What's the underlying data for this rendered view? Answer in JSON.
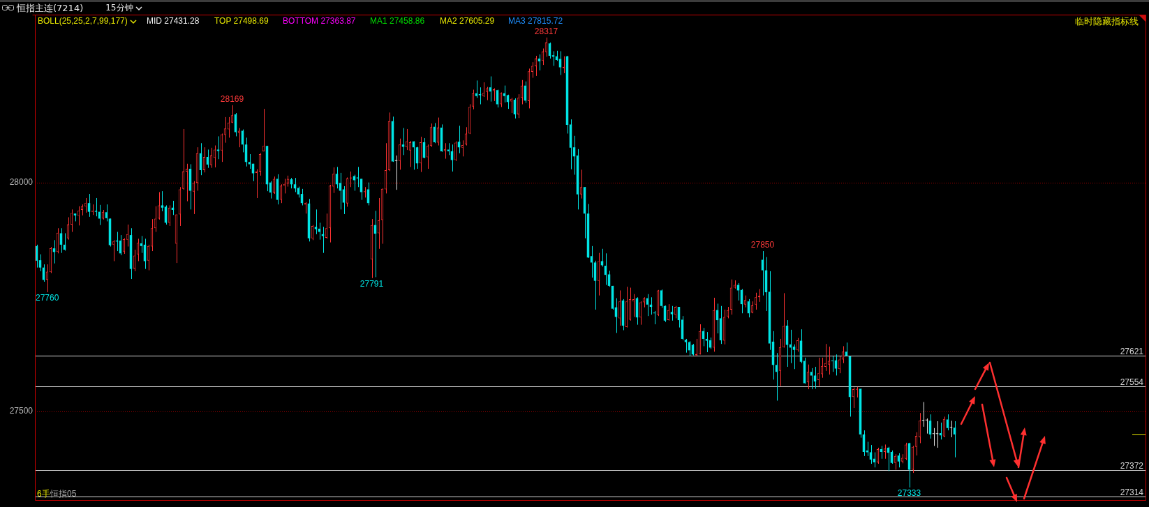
{
  "chart_data": {
    "type": "candlestick",
    "title": "恒指主连(7214)",
    "subtitle": "15分钟",
    "categories": [
      null,
      null,
      null,
      null,
      null,
      null,
      null,
      null,
      null,
      null,
      null,
      null,
      null,
      null,
      null,
      null,
      null,
      null,
      null,
      null,
      null,
      null,
      null,
      null,
      null,
      null,
      null,
      null,
      null,
      null,
      null,
      null,
      null,
      null,
      null,
      null,
      null,
      null,
      null,
      null,
      null,
      null,
      null,
      null,
      null,
      null,
      null,
      null,
      null,
      null,
      null,
      null,
      null,
      null,
      null,
      null,
      null,
      null,
      null,
      null,
      null,
      null,
      null,
      null,
      null,
      null,
      null,
      null,
      null,
      null,
      null,
      null,
      null,
      null,
      null,
      null,
      null,
      null,
      null,
      null,
      null,
      null,
      null,
      null,
      null,
      null,
      null,
      null,
      null,
      null,
      null,
      null,
      null,
      null,
      null,
      null,
      null,
      null,
      null,
      null,
      null,
      null,
      null,
      null,
      null,
      null,
      null,
      null,
      null,
      null,
      null,
      null,
      null,
      null,
      null,
      null,
      null,
      null,
      null,
      null,
      null,
      null,
      null,
      null,
      null,
      null,
      null,
      null,
      null,
      null,
      null,
      null,
      null,
      null,
      null,
      null,
      null,
      null,
      null,
      null,
      null,
      null,
      null,
      null,
      null,
      null,
      null,
      null,
      null,
      null,
      null,
      null,
      null,
      null,
      null,
      null,
      null,
      null,
      null,
      null,
      null,
      null,
      null,
      null,
      null,
      null,
      null,
      null,
      null,
      null,
      null,
      null,
      null,
      null,
      null,
      null,
      null,
      null,
      null,
      null,
      null,
      null,
      null,
      null,
      null,
      null,
      null,
      null,
      null,
      null,
      null,
      null,
      null,
      null,
      null,
      null,
      null,
      null,
      null,
      null,
      null,
      null,
      null,
      null,
      null,
      null,
      null,
      null,
      null,
      null,
      null,
      null,
      null,
      null,
      null,
      null,
      null,
      null,
      null,
      null,
      null,
      null,
      null,
      null,
      null,
      null,
      null,
      null,
      null,
      null,
      null,
      null,
      null,
      null,
      null,
      null,
      null,
      null,
      null,
      null,
      null,
      null,
      null,
      null,
      null,
      null,
      null,
      null,
      null,
      null,
      null,
      null,
      null,
      null,
      null,
      null,
      null,
      null,
      null,
      null,
      null,
      null,
      null,
      null
    ],
    "ohlc": [
      [
        27861,
        27864,
        27814,
        27829
      ],
      [
        27830,
        27843,
        27806,
        27814
      ],
      [
        27814,
        27821,
        27783,
        27787
      ],
      [
        27787,
        27821,
        27760,
        27805
      ],
      [
        27804,
        27859,
        27802,
        27856
      ],
      [
        27856,
        27874,
        27823,
        27848
      ],
      [
        27848,
        27900,
        27845,
        27890
      ],
      [
        27889,
        27900,
        27846,
        27864
      ],
      [
        27864,
        27889,
        27851,
        27853
      ],
      [
        27878,
        27924,
        27875,
        27908
      ],
      [
        27908,
        27941,
        27892,
        27933
      ],
      [
        27932,
        27932,
        27915,
        27928
      ],
      [
        27927,
        27948,
        27906,
        27938
      ],
      [
        27940,
        27952,
        27928,
        27948
      ],
      [
        27948,
        27966,
        27934,
        27955
      ],
      [
        27955,
        27975,
        27925,
        27936
      ],
      [
        27936,
        27952,
        27929,
        27938
      ],
      [
        27938,
        27966,
        27926,
        27936
      ],
      [
        27936,
        27951,
        27907,
        27921
      ],
      [
        27921,
        27940,
        27919,
        27936
      ],
      [
        27935,
        27952,
        27915,
        27922
      ],
      [
        27921,
        27921,
        27860,
        27863
      ],
      [
        27864,
        27874,
        27828,
        27871
      ],
      [
        27873,
        27892,
        27850,
        27871
      ],
      [
        27873,
        27885,
        27841,
        27845
      ],
      [
        27849,
        27878,
        27844,
        27876
      ],
      [
        27875,
        27908,
        27860,
        27887
      ],
      [
        27885,
        27900,
        27789,
        27811
      ],
      [
        27812,
        27853,
        27806,
        27840
      ],
      [
        27843,
        27877,
        27828,
        27868
      ],
      [
        27867,
        27883,
        27846,
        27861
      ],
      [
        27864,
        27877,
        27811,
        27828
      ],
      [
        27829,
        27864,
        27808,
        27861
      ],
      [
        27860,
        27920,
        27850,
        27900
      ],
      [
        27900,
        27948,
        27892,
        27921
      ],
      [
        27921,
        27979,
        27919,
        27950
      ],
      [
        27950,
        27981,
        27937,
        27945
      ],
      [
        27947,
        27950,
        27908,
        27912
      ],
      [
        27912,
        27950,
        27905,
        27945
      ],
      [
        27945,
        27960,
        27929,
        27940
      ],
      [
        27866,
        27930,
        27824,
        27930
      ],
      [
        27930,
        27990,
        27905,
        27985
      ],
      [
        27986,
        28117,
        27984,
        28024
      ],
      [
        28024,
        28041,
        27959,
        28030
      ],
      [
        28030,
        28040,
        27941,
        27982
      ],
      [
        27980,
        28003,
        27931,
        27999
      ],
      [
        27999,
        28077,
        27982,
        28064
      ],
      [
        28064,
        28086,
        28016,
        28027
      ],
      [
        28027,
        28077,
        28022,
        28056
      ],
      [
        28056,
        28072,
        28032,
        28039
      ],
      [
        28038,
        28076,
        28032,
        28059
      ],
      [
        28054,
        28081,
        28033,
        28072
      ],
      [
        28072,
        28101,
        28051,
        28069
      ],
      [
        28070,
        28107,
        28045,
        28105
      ],
      [
        28104,
        28143,
        28087,
        28118
      ],
      [
        28116,
        28143,
        28098,
        28131
      ],
      [
        28131,
        28169,
        28130,
        28147
      ],
      [
        28149,
        28152,
        28101,
        28110
      ],
      [
        28108,
        28119,
        28077,
        28113
      ],
      [
        28113,
        28116,
        28066,
        28083
      ],
      [
        28083,
        28098,
        28035,
        28045
      ],
      [
        28045,
        28062,
        28030,
        28040
      ],
      [
        28041,
        28041,
        28003,
        28020
      ],
      [
        28021,
        28029,
        27966,
        28024
      ],
      [
        28024,
        28064,
        28015,
        28062
      ],
      [
        28068,
        28161,
        28068,
        28080
      ],
      [
        28080,
        28080,
        27981,
        27996
      ],
      [
        28000,
        28003,
        27965,
        27978
      ],
      [
        27978,
        28013,
        27975,
        28008
      ],
      [
        28008,
        28018,
        27952,
        27962
      ],
      [
        27962,
        27996,
        27955,
        27993
      ],
      [
        27993,
        28008,
        27976,
        27997
      ],
      [
        27998,
        28015,
        27991,
        28008
      ],
      [
        28007,
        28010,
        27987,
        27996
      ],
      [
        27996,
        28010,
        27979,
        27987
      ],
      [
        27988,
        27991,
        27967,
        27974
      ],
      [
        27975,
        27986,
        27950,
        27955
      ],
      [
        27952,
        27957,
        27932,
        27955
      ],
      [
        27954,
        27964,
        27871,
        27878
      ],
      [
        27878,
        27907,
        27874,
        27905
      ],
      [
        27903,
        27941,
        27887,
        27898
      ],
      [
        27899,
        27912,
        27875,
        27892
      ],
      [
        27887,
        27903,
        27846,
        27883
      ],
      [
        27879,
        27932,
        27877,
        27900
      ],
      [
        27900,
        27995,
        27869,
        27993
      ],
      [
        27991,
        28033,
        27977,
        28019
      ],
      [
        28019,
        28034,
        27987,
        27996
      ],
      [
        27999,
        28021,
        27941,
        27982
      ],
      [
        27985,
        27992,
        27931,
        27956
      ],
      [
        27954,
        28011,
        27947,
        28009
      ],
      [
        28009,
        28024,
        27990,
        28011
      ],
      [
        28014,
        28017,
        27982,
        28005
      ],
      [
        28011,
        28034,
        27990,
        28009
      ],
      [
        28008,
        28008,
        27962,
        27979
      ],
      [
        27979,
        27990,
        27967,
        27981
      ],
      [
        27985,
        28000,
        27950,
        27955
      ],
      [
        27832,
        27920,
        27791,
        27907
      ],
      [
        27907,
        27938,
        27793,
        27888
      ],
      [
        27889,
        27966,
        27855,
        27917
      ],
      [
        27918,
        27987,
        27866,
        27986
      ],
      [
        27985,
        28086,
        27976,
        28027
      ],
      [
        28027,
        28153,
        28025,
        28134
      ],
      [
        28134,
        28144,
        28045,
        28046
      ],
      [
        28047,
        28059,
        27984,
        28047
      ],
      [
        28047,
        28096,
        28028,
        28083
      ],
      [
        28083,
        28119,
        28060,
        28078
      ],
      [
        28077,
        28117,
        28071,
        28090
      ],
      [
        28070,
        28091,
        28034,
        28088
      ],
      [
        28090,
        28090,
        28028,
        28077
      ],
      [
        28077,
        28078,
        28030,
        28042
      ],
      [
        28042,
        28100,
        28023,
        28088
      ],
      [
        28088,
        28097,
        28053,
        28054
      ],
      [
        28055,
        28083,
        28030,
        28080
      ],
      [
        28080,
        28129,
        28078,
        28121
      ],
      [
        28122,
        28130,
        28086,
        28088
      ],
      [
        28087,
        28142,
        28081,
        28120
      ],
      [
        28120,
        28127,
        28067,
        28068
      ],
      [
        28069,
        28086,
        28052,
        28073
      ],
      [
        28072,
        28086,
        28060,
        28068
      ],
      [
        28068,
        28083,
        28024,
        28049
      ],
      [
        28049,
        28090,
        28047,
        28087
      ],
      [
        28089,
        28124,
        28064,
        28077
      ],
      [
        28076,
        28092,
        28057,
        28082
      ],
      [
        28083,
        28121,
        28081,
        28107
      ],
      [
        28107,
        28171,
        28106,
        28165
      ],
      [
        28166,
        28203,
        28160,
        28195
      ],
      [
        28195,
        28223,
        28185,
        28189
      ],
      [
        28193,
        28208,
        28171,
        28191
      ],
      [
        28189,
        28219,
        28187,
        28196
      ],
      [
        28198,
        28209,
        28180,
        28206
      ],
      [
        28208,
        28232,
        28177,
        28199
      ],
      [
        28200,
        28206,
        28178,
        28204
      ],
      [
        28202,
        28203,
        28164,
        28171
      ],
      [
        28171,
        28197,
        28165,
        28196
      ],
      [
        28195,
        28212,
        28175,
        28189
      ],
      [
        28191,
        28192,
        28161,
        28176
      ],
      [
        28177,
        28185,
        28152,
        28183
      ],
      [
        28181,
        28184,
        28140,
        28149
      ],
      [
        28149,
        28193,
        28141,
        28185
      ],
      [
        28185,
        28224,
        28171,
        28212
      ],
      [
        28212,
        28221,
        28174,
        28179
      ],
      [
        28178,
        28249,
        28162,
        28243
      ],
      [
        28242,
        28263,
        28229,
        28255
      ],
      [
        28254,
        28277,
        28233,
        28271
      ],
      [
        28271,
        28280,
        28245,
        28265
      ],
      [
        28266,
        28293,
        28257,
        28286
      ],
      [
        28285,
        28317,
        28275,
        28306
      ],
      [
        28304,
        28306,
        28271,
        28277
      ],
      [
        28278,
        28287,
        28255,
        28275
      ],
      [
        28276,
        28288,
        28266,
        28268
      ],
      [
        28270,
        28287,
        28235,
        28252
      ],
      [
        28250,
        28276,
        28239,
        28253
      ],
      [
        28276,
        28277,
        28107,
        28126
      ],
      [
        28127,
        28138,
        28029,
        28076
      ],
      [
        28077,
        28102,
        28017,
        28057
      ],
      [
        28059,
        28073,
        27941,
        27974
      ],
      [
        27974,
        28028,
        27965,
        27990
      ],
      [
        27990,
        27990,
        27878,
        27932
      ],
      [
        27932,
        27953,
        27835,
        27836
      ],
      [
        27839,
        27861,
        27792,
        27825
      ],
      [
        27825,
        27829,
        27722,
        27785
      ],
      [
        27785,
        27846,
        27753,
        27828
      ],
      [
        27828,
        27855,
        27816,
        27819
      ],
      [
        27818,
        27845,
        27776,
        27798
      ],
      [
        27799,
        27807,
        27772,
        27774
      ],
      [
        27774,
        27774,
        27722,
        27724
      ],
      [
        27727,
        27747,
        27671,
        27706
      ],
      [
        27703,
        27764,
        27687,
        27740
      ],
      [
        27742,
        27745,
        27677,
        27687
      ],
      [
        27684,
        27772,
        27683,
        27740
      ],
      [
        27700,
        27770,
        27698,
        27745
      ],
      [
        27740,
        27756,
        27706,
        27745
      ],
      [
        27747,
        27749,
        27689,
        27705
      ],
      [
        27705,
        27740,
        27689,
        27738
      ],
      [
        27738,
        27749,
        27727,
        27747
      ],
      [
        27747,
        27756,
        27708,
        27733
      ],
      [
        27733,
        27749,
        27711,
        27728
      ],
      [
        27715,
        27719,
        27690,
        27714
      ],
      [
        27711,
        27765,
        27708,
        27764
      ],
      [
        27764,
        27766,
        27726,
        27730
      ],
      [
        27730,
        27731,
        27695,
        27698
      ],
      [
        27699,
        27734,
        27698,
        27721
      ],
      [
        27717,
        27730,
        27698,
        27712
      ],
      [
        27711,
        27730,
        27703,
        27728
      ],
      [
        27728,
        27728,
        27683,
        27699
      ],
      [
        27700,
        27708,
        27655,
        27658
      ],
      [
        27656,
        27658,
        27628,
        27651
      ],
      [
        27651,
        27653,
        27620,
        27633
      ],
      [
        27645,
        27647,
        27622,
        27624
      ],
      [
        27622,
        27658,
        27621,
        27625
      ],
      [
        27624,
        27690,
        27624,
        27675
      ],
      [
        27675,
        27682,
        27642,
        27658
      ],
      [
        27658,
        27673,
        27629,
        27654
      ],
      [
        27655,
        27661,
        27636,
        27639
      ],
      [
        27639,
        27748,
        27630,
        27721
      ],
      [
        27721,
        27735,
        27670,
        27699
      ],
      [
        27703,
        27730,
        27647,
        27655
      ],
      [
        27654,
        27722,
        27646,
        27706
      ],
      [
        27707,
        27728,
        27703,
        27721
      ],
      [
        27722,
        27788,
        27711,
        27770
      ],
      [
        27770,
        27786,
        27768,
        27776
      ],
      [
        27776,
        27780,
        27742,
        27764
      ],
      [
        27765,
        27767,
        27714,
        27734
      ],
      [
        27733,
        27753,
        27727,
        27743
      ],
      [
        27740,
        27745,
        27705,
        27714
      ],
      [
        27716,
        27740,
        27714,
        27731
      ],
      [
        27733,
        27759,
        27722,
        27749
      ],
      [
        27749,
        27767,
        27739,
        27752
      ],
      [
        27831,
        27850,
        27753,
        27808
      ],
      [
        27808,
        27837,
        27719,
        27760
      ],
      [
        27761,
        27806,
        27634,
        27648
      ],
      [
        27652,
        27675,
        27569,
        27601
      ],
      [
        27601,
        27627,
        27523,
        27586
      ],
      [
        27588,
        27658,
        27555,
        27640
      ],
      [
        27640,
        27758,
        27639,
        27686
      ],
      [
        27687,
        27699,
        27597,
        27645
      ],
      [
        27646,
        27678,
        27605,
        27639
      ],
      [
        27641,
        27646,
        27592,
        27634
      ],
      [
        27633,
        27660,
        27630,
        27655
      ],
      [
        27654,
        27679,
        27605,
        27608
      ],
      [
        27610,
        27617,
        27560,
        27561
      ],
      [
        27563,
        27602,
        27548,
        27586
      ],
      [
        27586,
        27594,
        27548,
        27578
      ],
      [
        27578,
        27597,
        27549,
        27565
      ],
      [
        27568,
        27617,
        27555,
        27583
      ],
      [
        27581,
        27617,
        27573,
        27599
      ],
      [
        27597,
        27647,
        27588,
        27605
      ],
      [
        27602,
        27641,
        27580,
        27610
      ],
      [
        27610,
        27620,
        27586,
        27609
      ],
      [
        27611,
        27624,
        27578,
        27593
      ],
      [
        27592,
        27620,
        27583,
        27613
      ],
      [
        27613,
        27642,
        27605,
        27630
      ],
      [
        27630,
        27650,
        27620,
        27621
      ],
      [
        27620,
        27620,
        27488,
        27531
      ],
      [
        27531,
        27552,
        27507,
        27548
      ],
      [
        27547,
        27553,
        27530,
        27549
      ],
      [
        27549,
        27549,
        27442,
        27449
      ],
      [
        27449,
        27458,
        27402,
        27411
      ],
      [
        27414,
        27433,
        27402,
        27410
      ],
      [
        27410,
        27426,
        27385,
        27394
      ],
      [
        27396,
        27410,
        27377,
        27388
      ],
      [
        27388,
        27420,
        27385,
        27417
      ],
      [
        27417,
        27424,
        27396,
        27411
      ],
      [
        27411,
        27427,
        27396,
        27418
      ],
      [
        27420,
        27422,
        27369,
        27409
      ],
      [
        27411,
        27414,
        27385,
        27387
      ],
      [
        27387,
        27406,
        27372,
        27402
      ],
      [
        27403,
        27408,
        27377,
        27390
      ],
      [
        27390,
        27406,
        27386,
        27398
      ],
      [
        27396,
        27431,
        27393,
        27427
      ],
      [
        27430,
        27431,
        27333,
        27372
      ],
      [
        27372,
        27424,
        27365,
        27422
      ],
      [
        27422,
        27454,
        27403,
        27446
      ],
      [
        27443,
        27496,
        27430,
        27479
      ],
      [
        27479,
        27520,
        27466,
        27479
      ],
      [
        27480,
        27484,
        27451,
        27480
      ],
      [
        27479,
        27493,
        27440,
        27449
      ],
      [
        27450,
        27463,
        27424,
        27450
      ],
      [
        27450,
        27478,
        27420,
        27450
      ],
      [
        27452,
        27475,
        27438,
        27447
      ],
      [
        27445,
        27488,
        27443,
        27483
      ],
      [
        27482,
        27493,
        27458,
        27463
      ],
      [
        27464,
        27479,
        27443,
        27464
      ],
      [
        27464,
        27478,
        27399,
        27449
      ]
    ],
    "value_labels": [
      null,
      null,
      null,
      "27760",
      null,
      null,
      null,
      null,
      null,
      null,
      null,
      null,
      null,
      null,
      null,
      null,
      null,
      null,
      null,
      null,
      null,
      null,
      null,
      null,
      null,
      null,
      null,
      null,
      null,
      null,
      null,
      null,
      null,
      null,
      null,
      null,
      null,
      null,
      null,
      null,
      null,
      null,
      null,
      null,
      null,
      null,
      null,
      null,
      null,
      null,
      null,
      null,
      null,
      null,
      null,
      null,
      "28169",
      null,
      null,
      null,
      null,
      null,
      null,
      null,
      null,
      null,
      null,
      null,
      null,
      null,
      null,
      null,
      null,
      null,
      null,
      null,
      null,
      null,
      null,
      null,
      null,
      null,
      null,
      null,
      null,
      null,
      null,
      null,
      null,
      null,
      null,
      null,
      null,
      null,
      null,
      null,
      "27791",
      null,
      null,
      null,
      null,
      null,
      null,
      null,
      null,
      null,
      null,
      null,
      null,
      null,
      null,
      null,
      null,
      null,
      null,
      null,
      null,
      null,
      null,
      null,
      null,
      null,
      null,
      null,
      null,
      null,
      null,
      null,
      null,
      null,
      null,
      null,
      null,
      null,
      null,
      null,
      null,
      null,
      null,
      null,
      null,
      null,
      null,
      null,
      null,
      null,
      "28317",
      null,
      null,
      null,
      null,
      null,
      null,
      null,
      null,
      null,
      null,
      null,
      null,
      null,
      null,
      null,
      null,
      null,
      null,
      null,
      null,
      null,
      null,
      null,
      null,
      null,
      null,
      null,
      null,
      null,
      null,
      null,
      null,
      null,
      null,
      null,
      null,
      null,
      null,
      null,
      null,
      null,
      null,
      null,
      null,
      null,
      null,
      null,
      null,
      null,
      null,
      null,
      null,
      null,
      null,
      null,
      null,
      null,
      null,
      null,
      null,
      null,
      "27850",
      null,
      null,
      null,
      null,
      null,
      null,
      null,
      null,
      null,
      null,
      null,
      null,
      null,
      null,
      null,
      null,
      null,
      null,
      null,
      null,
      null,
      null,
      null,
      null,
      null,
      null,
      null,
      null,
      null,
      null,
      null,
      null,
      null,
      null,
      null,
      null,
      null,
      null,
      null,
      null,
      null,
      "27333",
      null,
      null,
      null,
      null,
      null,
      null,
      null,
      null,
      null,
      null,
      null,
      null,
      null
    ],
    "colors": [
      "#00e5e5",
      "#00e5e5",
      "#00e5e5",
      "#ff3232",
      "#ff3232",
      "#00e5e5",
      "#ff3232",
      "#00e5e5",
      "#00e5e5",
      "#ff3232",
      "#ff3232",
      "#00e5e5",
      "#ff3232",
      "#ff3232",
      "#ff3232",
      "#00e5e5",
      "#ff3232",
      "#00e5e5",
      "#00e5e5",
      "#ff3232",
      "#00e5e5",
      "#00e5e5",
      "#ff3232",
      "#00e5e5",
      "#00e5e5",
      "#ff3232",
      "#ff3232",
      "#00e5e5",
      "#ff3232",
      "#ff3232",
      "#00e5e5",
      "#00e5e5",
      "#ff3232",
      "#ff3232",
      "#ff3232",
      "#ff3232",
      "#00e5e5",
      "#00e5e5",
      "#ff3232",
      "#00e5e5",
      "#ff3232",
      "#ff3232",
      "#ff3232",
      "#ff3232",
      "#00e5e5",
      "#ff3232",
      "#ff3232",
      "#00e5e5",
      "#ff3232",
      "#00e5e5",
      "#ff3232",
      "#ff3232",
      "#00e5e5",
      "#ff3232",
      "#ff3232",
      "#ff3232",
      "#ff3232",
      "#00e5e5",
      "#ff3232",
      "#00e5e5",
      "#00e5e5",
      "#00e5e5",
      "#00e5e5",
      "#ff3232",
      "#ff3232",
      "#ff3232",
      "#00e5e5",
      "#00e5e5",
      "#ff3232",
      "#00e5e5",
      "#ff3232",
      "#ff3232",
      "#ff3232",
      "#00e5e5",
      "#00e5e5",
      "#00e5e5",
      "#00e5e5",
      "#ff3232",
      "#00e5e5",
      "#ff3232",
      "#00e5e5",
      "#00e5e5",
      "#00e5e5",
      "#ff3232",
      "#ff3232",
      "#ff3232",
      "#00e5e5",
      "#00e5e5",
      "#00e5e5",
      "#ff3232",
      "#ff3232",
      "#00e5e5",
      "#00e5e5",
      "#00e5e5",
      "#ff3232",
      "#00e5e5",
      "#ff3232",
      "#00e5e5",
      "#ff3232",
      "#ff3232",
      "#ff3232",
      "#ff3232",
      "#00e5e5",
      "#e6e6e6",
      "#ff3232",
      "#00e5e5",
      "#ff3232",
      "#ff3232",
      "#00e5e5",
      "#00e5e5",
      "#ff3232",
      "#00e5e5",
      "#ff3232",
      "#ff3232",
      "#00e5e5",
      "#ff3232",
      "#00e5e5",
      "#ff3232",
      "#00e5e5",
      "#00e5e5",
      "#ff3232",
      "#00e5e5",
      "#ff3232",
      "#ff3232",
      "#ff3232",
      "#ff3232",
      "#00e5e5",
      "#00e5e5",
      "#ff3232",
      "#ff3232",
      "#00e5e5",
      "#ff3232",
      "#00e5e5",
      "#ff3232",
      "#00e5e5",
      "#00e5e5",
      "#ff3232",
      "#00e5e5",
      "#ff3232",
      "#ff3232",
      "#00e5e5",
      "#ff3232",
      "#ff3232",
      "#ff3232",
      "#00e5e5",
      "#ff3232",
      "#ff3232",
      "#00e5e5",
      "#00e5e5",
      "#00e5e5",
      "#00e5e5",
      "#ff3232",
      "#00e5e5",
      "#00e5e5",
      "#00e5e5",
      "#00e5e5",
      "#ff3232",
      "#00e5e5",
      "#00e5e5",
      "#00e5e5",
      "#00e5e5",
      "#ff3232",
      "#00e5e5",
      "#00e5e5",
      "#00e5e5",
      "#00e5e5",
      "#00e5e5",
      "#ff3232",
      "#00e5e5",
      "#ff3232",
      "#ff3232",
      "#ff3232",
      "#00e5e5",
      "#ff3232",
      "#ff3232",
      "#00e5e5",
      "#00e5e5",
      "#00e5e5",
      "#ff3232",
      "#00e5e5",
      "#00e5e5",
      "#ff3232",
      "#00e5e5",
      "#ff3232",
      "#00e5e5",
      "#00e5e5",
      "#00e5e5",
      "#00e5e5",
      "#00e5e5",
      "#ff3232",
      "#ff3232",
      "#00e5e5",
      "#00e5e5",
      "#00e5e5",
      "#ff3232",
      "#00e5e5",
      "#00e5e5",
      "#ff3232",
      "#ff3232",
      "#ff3232",
      "#ff3232",
      "#00e5e5",
      "#00e5e5",
      "#ff3232",
      "#00e5e5",
      "#ff3232",
      "#ff3232",
      "#ff3232",
      "#00e5e5",
      "#00e5e5",
      "#00e5e5",
      "#00e5e5",
      "#00e5e5",
      "#ff3232",
      "#ff3232",
      "#00e5e5",
      "#00e5e5",
      "#00e5e5",
      "#ff3232",
      "#00e5e5",
      "#00e5e5",
      "#ff3232",
      "#00e5e5",
      "#00e5e5",
      "#ff3232",
      "#ff3232",
      "#ff3232",
      "#ff3232",
      "#00e5e5",
      "#00e5e5",
      "#ff3232",
      "#ff3232",
      "#00e5e5",
      "#00e5e5",
      "#ff3232",
      "#ff3232",
      "#00e5e5",
      "#00e5e5",
      "#00e5e5",
      "#00e5e5",
      "#00e5e5",
      "#ff3232",
      "#00e5e5",
      "#ff3232",
      "#00e5e5",
      "#00e5e5",
      "#ff3232",
      "#00e5e5",
      "#ff3232",
      "#ff3232",
      "#00e5e5",
      "#ff3232",
      "#ff3232",
      "#ff3232",
      "#e6e6e6",
      "#e6e6e6",
      "#00e5e5",
      "#e6e6e6",
      "#e6e6e6",
      "#00e5e5",
      "#ff3232",
      "#00e5e5",
      "#e6e6e6",
      "#00e5e5"
    ],
    "ylim": [
      27306,
      28367
    ],
    "yticks": [
      27500,
      28000
    ],
    "grid": "y",
    "tick_labels": "y",
    "ref_lines": [
      {
        "axis": "y",
        "value": 27621,
        "label": "27621",
        "color": "#d8d8d8"
      },
      {
        "axis": "y",
        "value": 27554,
        "label": "27554",
        "color": "#d8d8d8"
      },
      {
        "axis": "y",
        "value": 27372,
        "label": "27372",
        "color": "#d8d8d8"
      },
      {
        "axis": "y",
        "value": 27314,
        "label": "27314",
        "color": "#d8d8d8"
      }
    ],
    "annotations": [
      "BOLL(25,25,2,7,99,177)",
      "MID 27431.28",
      "TOP 27498.69",
      "BOTTOM 27363.87",
      "MA1 27458.86",
      "MA2 27605.29",
      "MA3 27815.72",
      "临时隐藏指标线",
      "6手",
      "恒指05"
    ]
  }
}
